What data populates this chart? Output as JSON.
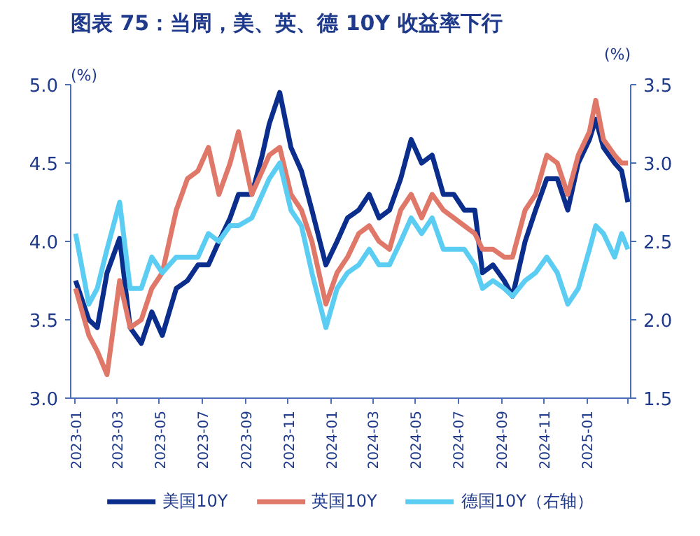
{
  "chart_data": {
    "type": "line",
    "title": "图表 75：当周，美、英、德 10Y 收益率下行",
    "ylabel": "(%)",
    "y2label": "(%)",
    "xlim": [
      "2022-12-25",
      "2025-03-05"
    ],
    "xticks": [
      {
        "value": "2023-01",
        "label": "2023-01"
      },
      {
        "value": "2023-03",
        "label": "2023-03"
      },
      {
        "value": "2023-05",
        "label": "2023-05"
      },
      {
        "value": "2023-07",
        "label": "2023-07"
      },
      {
        "value": "2023-09",
        "label": "2023-09"
      },
      {
        "value": "2023-11",
        "label": "2023-11"
      },
      {
        "value": "2024-01",
        "label": "2024-01"
      },
      {
        "value": "2024-03",
        "label": "2024-03"
      },
      {
        "value": "2024-05",
        "label": "2024-05"
      },
      {
        "value": "2024-07",
        "label": "2024-07"
      },
      {
        "value": "2024-09",
        "label": "2024-09"
      },
      {
        "value": "2024-11",
        "label": "2024-11"
      },
      {
        "value": "2025-01",
        "label": "2025-01"
      },
      {
        "value": "2025-03",
        "label": null
      }
    ],
    "ylim": [
      3.0,
      5.0
    ],
    "yticks": [
      {
        "value": 3.0,
        "label": "3.0"
      },
      {
        "value": 3.5,
        "label": "3.5"
      },
      {
        "value": 4.0,
        "label": "4.0"
      },
      {
        "value": 4.5,
        "label": "4.5"
      },
      {
        "value": 5.0,
        "label": "5.0"
      }
    ],
    "y2lim": [
      1.5,
      3.5
    ],
    "y2ticks": [
      {
        "value": 1.5,
        "label": "1.5"
      },
      {
        "value": 2.0,
        "label": "2.0"
      },
      {
        "value": 2.5,
        "label": "2.5"
      },
      {
        "value": 3.0,
        "label": "3.0"
      },
      {
        "value": 3.5,
        "label": "3.5"
      }
    ],
    "x": [
      "2023-01-01",
      "2023-01-20",
      "2023-02-01",
      "2023-02-15",
      "2023-03-05",
      "2023-03-20",
      "2023-04-05",
      "2023-04-20",
      "2023-05-05",
      "2023-05-25",
      "2023-06-10",
      "2023-06-25",
      "2023-07-10",
      "2023-07-25",
      "2023-08-10",
      "2023-08-22",
      "2023-09-10",
      "2023-09-25",
      "2023-10-05",
      "2023-10-20",
      "2023-11-05",
      "2023-11-20",
      "2023-12-05",
      "2023-12-25",
      "2024-01-10",
      "2024-01-25",
      "2024-02-10",
      "2024-02-25",
      "2024-03-10",
      "2024-03-25",
      "2024-04-10",
      "2024-04-25",
      "2024-05-10",
      "2024-05-25",
      "2024-06-10",
      "2024-06-25",
      "2024-07-10",
      "2024-07-25",
      "2024-08-05",
      "2024-08-20",
      "2024-09-05",
      "2024-09-17",
      "2024-10-05",
      "2024-10-20",
      "2024-11-05",
      "2024-11-20",
      "2024-12-05",
      "2024-12-20",
      "2025-01-05",
      "2025-01-14",
      "2025-01-25",
      "2025-02-10",
      "2025-02-20",
      "2025-03-01"
    ],
    "legend": "bottom",
    "line_style": "solid",
    "grid": false,
    "series": [
      {
        "name": "美国10Y",
        "color": "#0b2d8c",
        "values": [
          3.75,
          3.5,
          3.45,
          3.8,
          4.02,
          3.45,
          3.35,
          3.55,
          3.4,
          3.7,
          3.75,
          3.85,
          3.85,
          4.0,
          4.15,
          4.3,
          4.3,
          4.55,
          4.75,
          4.95,
          4.6,
          4.45,
          4.2,
          3.85,
          4.0,
          4.15,
          4.2,
          4.3,
          4.15,
          4.2,
          4.4,
          4.65,
          4.5,
          4.55,
          4.3,
          4.3,
          4.2,
          4.2,
          3.8,
          3.85,
          3.75,
          3.65,
          4.0,
          4.2,
          4.4,
          4.4,
          4.2,
          4.5,
          4.65,
          4.78,
          4.6,
          4.5,
          4.45,
          4.25
        ]
      },
      {
        "name": "英国10Y",
        "color": "#e0786a",
        "values": [
          3.7,
          3.4,
          3.3,
          3.15,
          3.75,
          3.45,
          3.5,
          3.7,
          3.8,
          4.2,
          4.4,
          4.45,
          4.6,
          4.3,
          4.5,
          4.7,
          4.3,
          4.45,
          4.55,
          4.6,
          4.3,
          4.2,
          4.0,
          3.6,
          3.8,
          3.9,
          4.05,
          4.1,
          4.0,
          3.95,
          4.2,
          4.3,
          4.15,
          4.3,
          4.2,
          4.15,
          4.1,
          4.05,
          3.95,
          3.95,
          3.9,
          3.9,
          4.2,
          4.3,
          4.55,
          4.5,
          4.3,
          4.55,
          4.7,
          4.9,
          4.65,
          4.55,
          4.5,
          4.5
        ]
      },
      {
        "name": "德国10Y（右轴）",
        "color": "#5ccdf2",
        "axis": "y2",
        "values": [
          2.55,
          2.1,
          2.2,
          2.45,
          2.75,
          2.2,
          2.2,
          2.4,
          2.3,
          2.4,
          2.4,
          2.4,
          2.55,
          2.5,
          2.6,
          2.6,
          2.65,
          2.8,
          2.9,
          3.0,
          2.7,
          2.6,
          2.3,
          1.95,
          2.2,
          2.3,
          2.35,
          2.45,
          2.35,
          2.35,
          2.5,
          2.65,
          2.55,
          2.65,
          2.45,
          2.45,
          2.45,
          2.35,
          2.2,
          2.25,
          2.2,
          2.15,
          2.25,
          2.3,
          2.4,
          2.3,
          2.1,
          2.2,
          2.45,
          2.6,
          2.55,
          2.4,
          2.55,
          2.45
        ]
      }
    ]
  }
}
